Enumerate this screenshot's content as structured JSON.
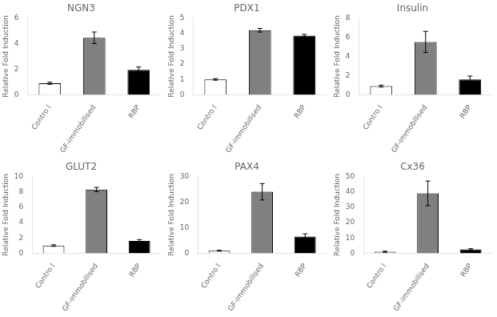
{
  "chart_data": [
    {
      "type": "bar",
      "title": "NGN3",
      "ylabel": "Relative Fold Induction",
      "categories": [
        "Contro l",
        "GF-immobilised",
        "RBP"
      ],
      "values": [
        0.9,
        4.45,
        1.95
      ],
      "errors": [
        0.08,
        0.45,
        0.22
      ],
      "colors": [
        "white",
        "#808080",
        "black"
      ],
      "ylim": [
        0,
        6
      ],
      "yticks": [
        0,
        2,
        4,
        6
      ],
      "grid": false
    },
    {
      "type": "bar",
      "title": "PDX1",
      "ylabel": "Relative Fold Induction",
      "categories": [
        "Contro l",
        "GF-immobilised",
        "RBP"
      ],
      "values": [
        1.0,
        4.2,
        3.85
      ],
      "errors": [
        0.05,
        0.12,
        0.08
      ],
      "colors": [
        "white",
        "#808080",
        "black"
      ],
      "ylim": [
        0,
        5
      ],
      "yticks": [
        0,
        1,
        2,
        3,
        4,
        5
      ],
      "grid": false
    },
    {
      "type": "bar",
      "title": "Insulin",
      "ylabel": "Relative Fold Induction",
      "categories": [
        "Contro l",
        "GF-immobilised",
        "RBP"
      ],
      "values": [
        0.9,
        5.5,
        1.6
      ],
      "errors": [
        0.1,
        1.1,
        0.35
      ],
      "colors": [
        "white",
        "#808080",
        "black"
      ],
      "ylim": [
        0,
        8
      ],
      "yticks": [
        0,
        2,
        4,
        6,
        8
      ],
      "grid": false
    },
    {
      "type": "bar",
      "title": "GLUT2",
      "ylabel": "Relative Fold Induction",
      "categories": [
        "Contro l",
        "GF-immobilised",
        "RBP"
      ],
      "values": [
        1.0,
        8.3,
        1.6
      ],
      "errors": [
        0.1,
        0.28,
        0.18
      ],
      "colors": [
        "white",
        "#808080",
        "black"
      ],
      "ylim": [
        0,
        10
      ],
      "yticks": [
        0,
        2,
        4,
        6,
        8,
        10
      ],
      "grid": false
    },
    {
      "type": "bar",
      "title": "PAX4",
      "ylabel": "Relative Fold Induction",
      "categories": [
        "Contro l",
        "GF-immobilised",
        "RBP"
      ],
      "values": [
        1.0,
        24.0,
        6.5
      ],
      "errors": [
        0.15,
        3.2,
        1.1
      ],
      "colors": [
        "white",
        "#808080",
        "black"
      ],
      "ylim": [
        0,
        30
      ],
      "yticks": [
        0,
        10,
        20,
        30
      ],
      "grid": false
    },
    {
      "type": "bar",
      "title": "Cx36",
      "ylabel": "Relative Fold Induction",
      "categories": [
        "Contro l",
        "GF-immobilised",
        "RBP"
      ],
      "values": [
        1.0,
        39.0,
        2.5
      ],
      "errors": [
        0.4,
        8.0,
        0.5
      ],
      "colors": [
        "white",
        "#808080",
        "black"
      ],
      "ylim": [
        0,
        50
      ],
      "yticks": [
        0,
        10,
        20,
        30,
        40,
        50
      ],
      "grid": false
    }
  ]
}
